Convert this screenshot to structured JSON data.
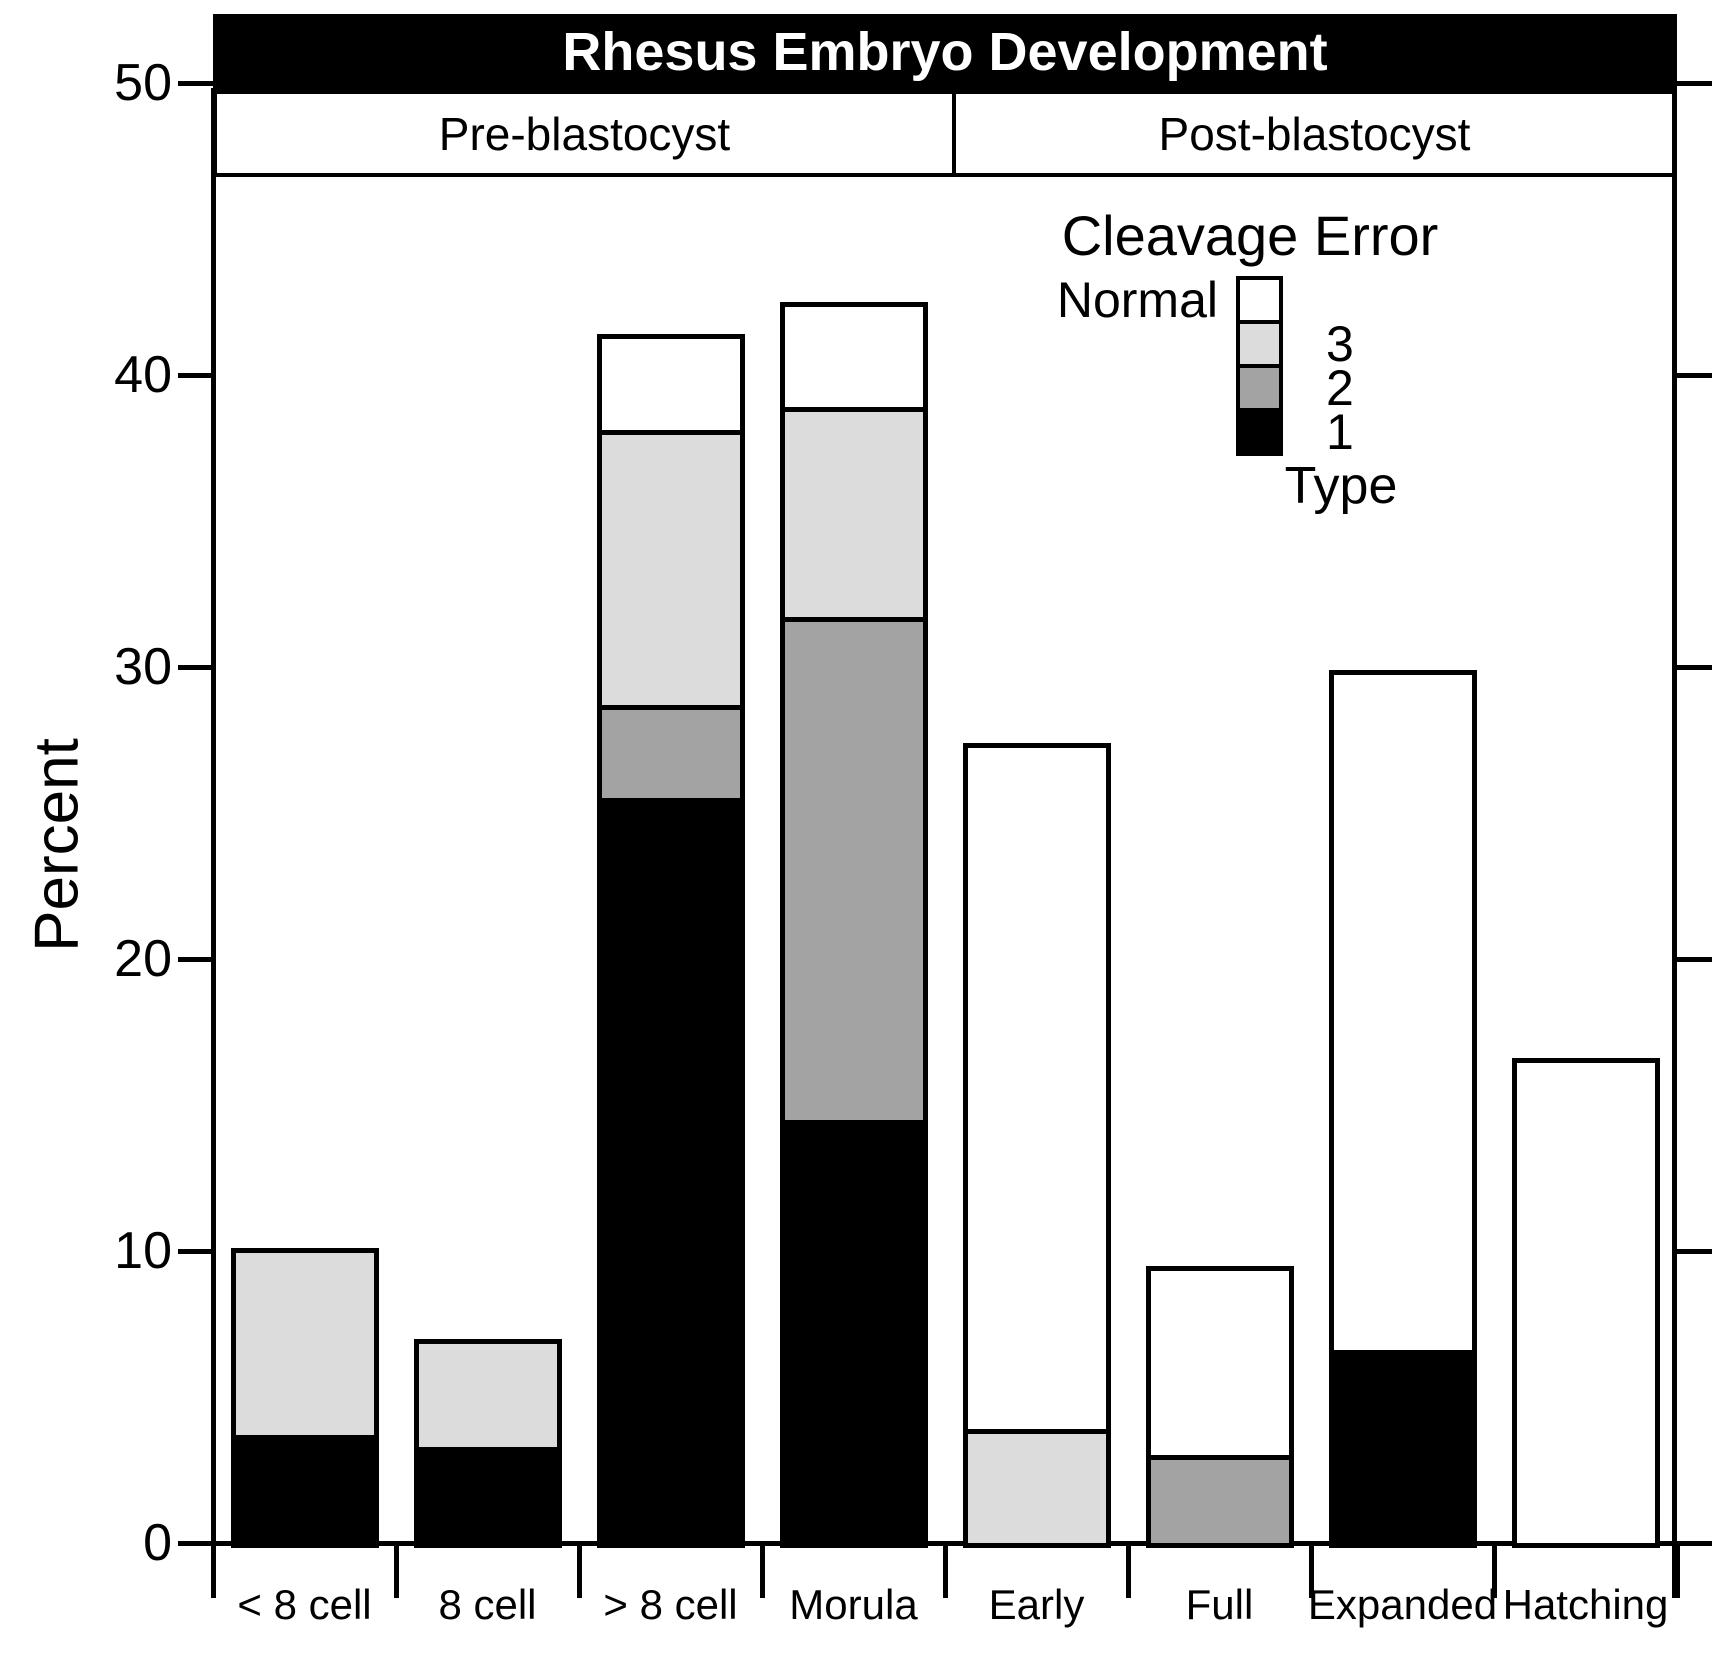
{
  "title": "Rhesus Embryo Development",
  "sections": {
    "pre": "Pre-blastocyst",
    "post": "Post-blastocyst"
  },
  "y_axis": {
    "label": "Percent",
    "ticks": [
      0,
      10,
      20,
      30,
      40,
      50
    ],
    "range": [
      0,
      50
    ]
  },
  "x_axis": {
    "categories": [
      "< 8 cell",
      "8 cell",
      "> 8 cell",
      "Morula",
      "Early",
      "Full",
      "Expanded",
      "Hatching"
    ]
  },
  "legend": {
    "title": "Cleavage Error",
    "axis_caption": "Type",
    "entries": [
      {
        "label": "Normal",
        "color": "#ffffff",
        "label_side": "left"
      },
      {
        "label": "3",
        "color": "#dcdcdc",
        "label_side": "right"
      },
      {
        "label": "2",
        "color": "#a3a3a3",
        "label_side": "right"
      },
      {
        "label": "1",
        "color": "#000000",
        "label_side": "right"
      }
    ]
  },
  "colors": {
    "title_bg": "#000000",
    "title_fg": "#ffffff",
    "bar_outline": "#000000",
    "type1": "#000000",
    "type2": "#a3a3a3",
    "type3": "#dcdcdc",
    "normal": "#ffffff"
  },
  "chart_data": {
    "type": "bar",
    "stacked": true,
    "title": "Rhesus Embryo Development",
    "group_labels": [
      "Pre-blastocyst",
      "Post-blastocyst"
    ],
    "categories": [
      "< 8 cell",
      "8 cell",
      "> 8 cell",
      "Morula",
      "Early",
      "Full",
      "Expanded",
      "Hatching"
    ],
    "category_groups": [
      "Pre-blastocyst",
      "Pre-blastocyst",
      "Pre-blastocyst",
      "Pre-blastocyst",
      "Post-blastocyst",
      "Post-blastocyst",
      "Post-blastocyst",
      "Post-blastocyst"
    ],
    "xlabel": "",
    "ylabel": "Percent",
    "ylim": [
      0,
      50
    ],
    "yticks": [
      0,
      10,
      20,
      30,
      40,
      50
    ],
    "legend_title": "Cleavage Error",
    "series": [
      {
        "name": "Type 1",
        "legend_label": "1",
        "color": "#000000",
        "values": [
          3.7,
          3.3,
          25.5,
          14.5,
          0,
          0,
          6.6,
          0
        ]
      },
      {
        "name": "Type 2",
        "legend_label": "2",
        "color": "#a3a3a3",
        "values": [
          0,
          0,
          3.2,
          17.2,
          0,
          3.0,
          0,
          0
        ]
      },
      {
        "name": "Type 3",
        "legend_label": "3",
        "color": "#dcdcdc",
        "values": [
          6.4,
          3.7,
          9.4,
          7.2,
          3.9,
          0,
          0,
          0
        ]
      },
      {
        "name": "Normal",
        "legend_label": "Normal",
        "color": "#ffffff",
        "values": [
          0,
          0,
          3.3,
          3.6,
          23.5,
          6.5,
          23.3,
          16.6
        ]
      }
    ],
    "stack_totals": [
      10.1,
      7.0,
      41.4,
      42.5,
      27.4,
      9.5,
      29.9,
      16.6
    ]
  }
}
